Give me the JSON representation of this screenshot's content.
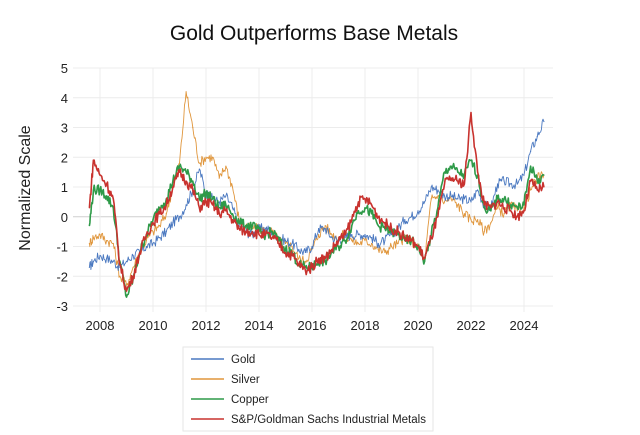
{
  "chart_data": {
    "type": "line",
    "title": "Gold Outperforms Base Metals",
    "xlabel": "",
    "ylabel": "Normalized Scale",
    "xlim": [
      2007.5,
      2024.8
    ],
    "ylim": [
      -3,
      5
    ],
    "x_ticks": [
      2008,
      2010,
      2012,
      2014,
      2016,
      2018,
      2020,
      2022,
      2024
    ],
    "x_tick_labels": [
      "2008",
      "2010",
      "2012",
      "2014",
      "2016",
      "2018",
      "2020",
      "2022",
      "2024"
    ],
    "y_ticks": [
      5,
      4,
      3,
      2,
      1,
      0,
      -1,
      -2,
      -3
    ],
    "y_tick_labels": [
      "5",
      "4",
      "3",
      "2",
      "1",
      "0",
      "-1",
      "-2",
      "-3"
    ],
    "grid": true,
    "legend_position": "bottom-center",
    "x": [
      2007.6,
      2007.75,
      2008.0,
      2008.25,
      2008.5,
      2008.75,
      2009.0,
      2009.25,
      2009.5,
      2009.75,
      2010.0,
      2010.25,
      2010.5,
      2010.75,
      2011.0,
      2011.25,
      2011.5,
      2011.75,
      2012.0,
      2012.25,
      2012.5,
      2012.75,
      2013.0,
      2013.25,
      2013.5,
      2013.75,
      2014.0,
      2014.25,
      2014.5,
      2014.75,
      2015.0,
      2015.25,
      2015.5,
      2015.75,
      2016.0,
      2016.25,
      2016.5,
      2016.75,
      2017.0,
      2017.25,
      2017.5,
      2017.75,
      2018.0,
      2018.25,
      2018.5,
      2018.75,
      2019.0,
      2019.25,
      2019.5,
      2019.75,
      2020.0,
      2020.25,
      2020.5,
      2020.75,
      2021.0,
      2021.25,
      2021.5,
      2021.75,
      2022.0,
      2022.25,
      2022.5,
      2022.75,
      2023.0,
      2023.25,
      2023.5,
      2023.75,
      2024.0,
      2024.25,
      2024.5,
      2024.75
    ],
    "series": [
      {
        "name": "Gold",
        "color": "#4a78c0",
        "values": [
          -1.7,
          -1.5,
          -1.3,
          -1.4,
          -1.5,
          -1.7,
          -1.5,
          -1.3,
          -1.2,
          -1.0,
          -0.9,
          -0.7,
          -0.5,
          -0.2,
          0.0,
          0.4,
          0.9,
          1.6,
          0.8,
          0.6,
          0.5,
          0.7,
          0.3,
          -0.3,
          -0.5,
          -0.6,
          -0.4,
          -0.4,
          -0.5,
          -0.7,
          -0.8,
          -0.9,
          -1.1,
          -1.2,
          -1.0,
          -0.4,
          -0.4,
          -0.7,
          -0.8,
          -0.7,
          -0.6,
          -0.6,
          -0.6,
          -0.7,
          -0.9,
          -0.8,
          -0.6,
          -0.4,
          -0.1,
          0.0,
          0.2,
          0.5,
          1.0,
          0.9,
          0.7,
          0.7,
          0.6,
          0.6,
          0.5,
          0.9,
          0.4,
          0.3,
          1.1,
          1.2,
          1.1,
          1.1,
          1.4,
          2.2,
          2.7,
          3.2
        ]
      },
      {
        "name": "Silver",
        "color": "#e0963c",
        "values": [
          -0.9,
          -0.7,
          -0.6,
          -0.8,
          -0.9,
          -2.0,
          -2.3,
          -1.7,
          -1.2,
          -0.8,
          -0.5,
          -0.3,
          0.1,
          1.0,
          1.8,
          4.2,
          3.0,
          1.8,
          2.0,
          2.0,
          1.3,
          1.7,
          1.0,
          -0.1,
          -0.3,
          -0.4,
          -0.4,
          -0.5,
          -0.5,
          -0.8,
          -0.9,
          -1.0,
          -1.4,
          -1.5,
          -1.1,
          -0.6,
          -0.3,
          -0.6,
          -0.7,
          -0.6,
          -0.8,
          -0.9,
          -0.8,
          -0.9,
          -1.1,
          -1.2,
          -1.0,
          -0.9,
          -0.7,
          -0.8,
          -1.0,
          -1.5,
          0.6,
          0.7,
          0.5,
          0.6,
          0.4,
          0.1,
          -0.1,
          -0.1,
          -0.5,
          -0.2,
          0.3,
          0.1,
          0.4,
          0.2,
          0.3,
          0.9,
          1.3,
          1.4
        ]
      },
      {
        "name": "Copper",
        "color": "#2e9a48",
        "values": [
          -0.3,
          0.9,
          0.9,
          0.7,
          0.3,
          -1.5,
          -2.7,
          -2.1,
          -1.2,
          -0.6,
          -0.1,
          0.3,
          0.6,
          1.2,
          1.7,
          1.5,
          1.2,
          0.6,
          0.8,
          0.6,
          0.3,
          0.4,
          0.1,
          -0.2,
          -0.3,
          -0.3,
          -0.5,
          -0.6,
          -0.5,
          -0.8,
          -1.1,
          -1.2,
          -1.6,
          -1.7,
          -1.7,
          -1.5,
          -1.5,
          -1.2,
          -1.0,
          -0.8,
          -0.3,
          0.2,
          0.3,
          0.1,
          -0.3,
          -0.4,
          -0.5,
          -0.6,
          -0.8,
          -0.8,
          -1.0,
          -1.5,
          -0.6,
          0.3,
          1.5,
          1.7,
          1.5,
          1.4,
          1.9,
          1.4,
          0.3,
          0.2,
          0.6,
          0.6,
          0.4,
          0.3,
          0.4,
          1.7,
          1.2,
          1.4
        ]
      },
      {
        "name": "S&P/Goldman Sachs Industrial Metals",
        "color": "#c8322e",
        "values": [
          0.3,
          1.9,
          1.4,
          1.1,
          0.6,
          -1.6,
          -2.5,
          -2.0,
          -1.2,
          -0.6,
          -0.2,
          0.1,
          0.4,
          1.0,
          1.5,
          1.2,
          0.9,
          0.3,
          0.5,
          0.4,
          0.1,
          0.2,
          -0.1,
          -0.4,
          -0.5,
          -0.5,
          -0.6,
          -0.6,
          -0.7,
          -0.9,
          -1.2,
          -1.3,
          -1.6,
          -1.8,
          -1.7,
          -1.4,
          -1.4,
          -1.1,
          -0.8,
          -0.6,
          -0.1,
          0.5,
          0.6,
          0.4,
          0.0,
          -0.2,
          -0.4,
          -0.5,
          -0.7,
          -0.8,
          -1.0,
          -1.4,
          -0.7,
          0.0,
          1.1,
          1.3,
          1.2,
          1.1,
          3.5,
          1.5,
          0.4,
          0.3,
          0.5,
          0.3,
          0.2,
          0.0,
          0.2,
          1.2,
          0.9,
          1.0
        ]
      }
    ]
  }
}
